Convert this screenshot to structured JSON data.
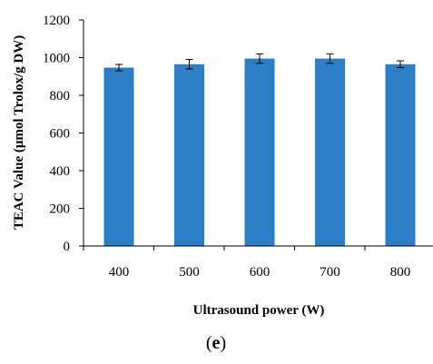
{
  "chart_data": {
    "type": "bar",
    "categories": [
      "400",
      "500",
      "600",
      "700",
      "800"
    ],
    "values": [
      947,
      965,
      995,
      995,
      965
    ],
    "errors": [
      17,
      25,
      25,
      25,
      18
    ],
    "ylim": [
      0,
      1200
    ],
    "yticks": [
      "0",
      "200",
      "400",
      "600",
      "800",
      "1000",
      "1200"
    ],
    "ylabel": "TEAC Value (μmol Trolox/g DW)",
    "xlabel": "Ultrasound power (W)",
    "bar_color": "#2a7fc6",
    "grid": false,
    "panel_label": {
      "open": "(",
      "letter": "e",
      "close": ")"
    }
  }
}
